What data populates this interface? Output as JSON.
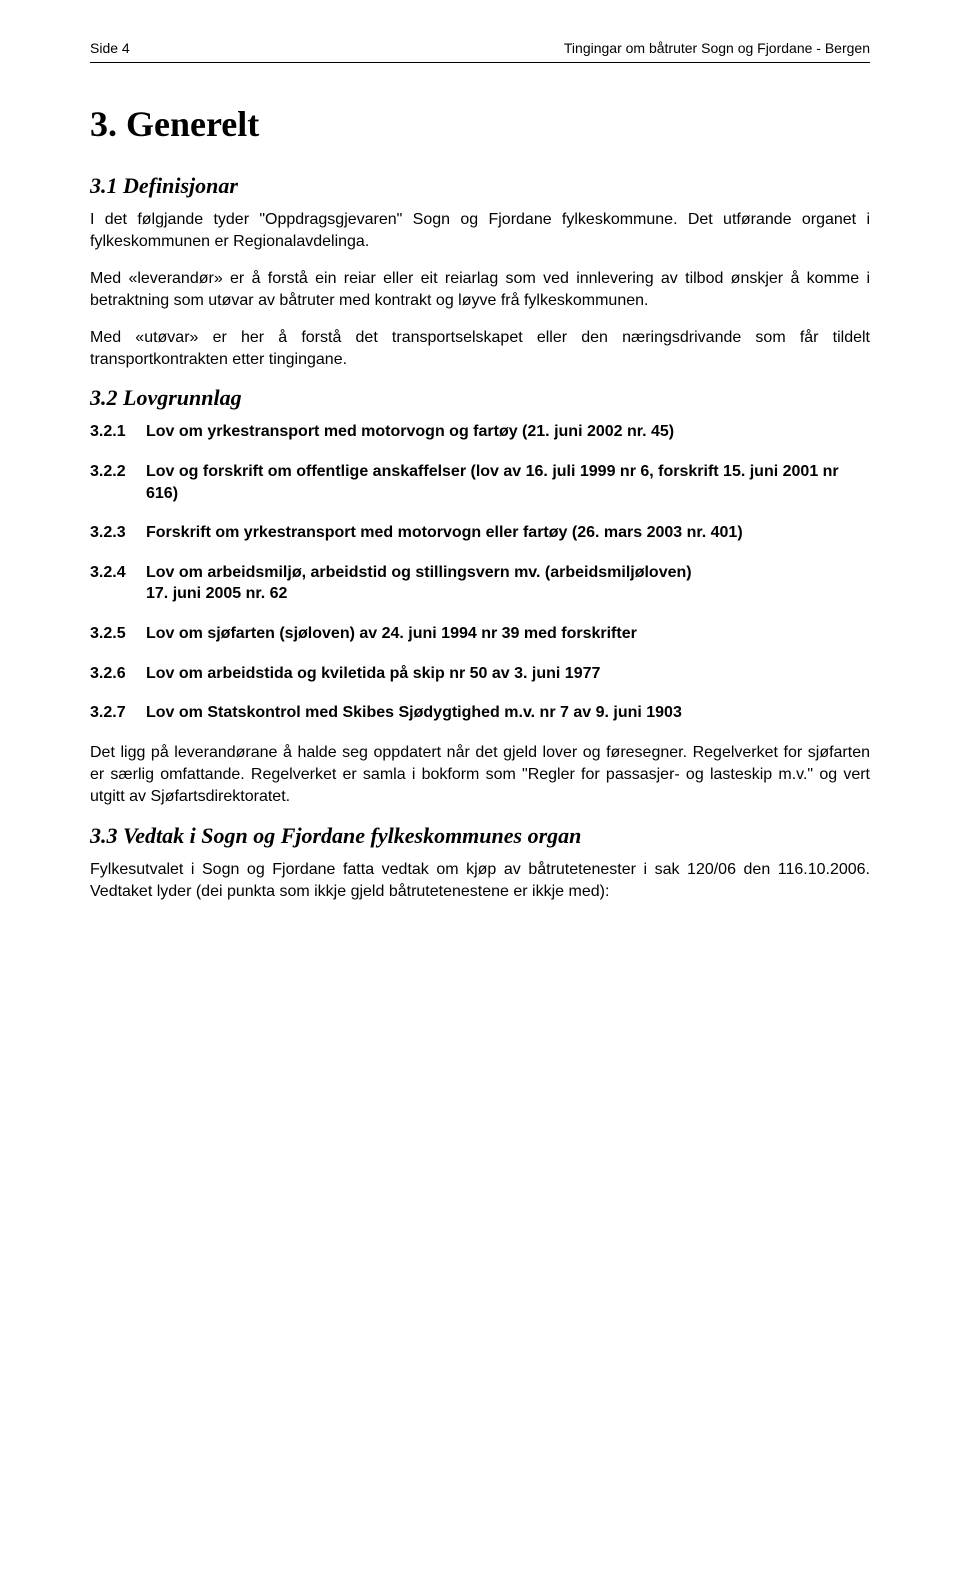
{
  "header": {
    "page_label": "Side 4",
    "doc_title": "Tingingar om båtruter Sogn og Fjordane - Bergen"
  },
  "section3": {
    "title": "3. Generelt",
    "s31": {
      "title": "3.1 Definisjonar",
      "p1": "I det følgjande tyder \"Oppdragsgjevaren\" Sogn og Fjordane fylkeskommune. Det utførande organet i fylkeskommunen er Regionalavdelinga.",
      "p2": "Med «leverandør» er å forstå ein reiar eller eit reiarlag som ved innlevering av tilbod ønskjer å komme i betraktning som utøvar av båtruter med kontrakt og løyve frå fylkeskommunen.",
      "p3": "Med «utøvar» er her å forstå det transportselskapet eller den næringsdrivande som får tildelt transportkontrakten etter tingingane."
    },
    "s32": {
      "title": "3.2 Lovgrunnlag",
      "items": [
        {
          "num": "3.2.1",
          "text": "Lov om yrkestransport med motorvogn og fartøy (21. juni 2002 nr. 45)"
        },
        {
          "num": "3.2.2",
          "text": "Lov og forskrift om offentlige anskaffelser (lov av 16. juli 1999 nr 6, forskrift 15. juni 2001 nr 616)"
        },
        {
          "num": "3.2.3",
          "text": "Forskrift om yrkestransport med motorvogn eller fartøy (26. mars 2003 nr. 401)"
        },
        {
          "num": "3.2.4",
          "text": "Lov om arbeidsmiljø, arbeidstid og stillingsvern mv. (arbeidsmiljøloven)\n17. juni 2005 nr. 62"
        },
        {
          "num": "3.2.5",
          "text": "Lov om sjøfarten (sjøloven) av 24. juni 1994 nr 39 med forskrifter"
        },
        {
          "num": "3.2.6",
          "text": "Lov om arbeidstida og kviletida på skip nr 50 av 3. juni 1977"
        },
        {
          "num": "3.2.7",
          "text": "Lov om Statskontrol med Skibes Sjødygtighed m.v. nr 7 av 9. juni 1903"
        }
      ],
      "closing": "Det ligg på leverandørane å halde seg oppdatert når det gjeld lover og føresegner. Regelverket for sjøfarten er særlig omfattande. Regelverket er samla i bokform som \"Regler for passasjer- og lasteskip m.v.\" og vert utgitt av Sjøfartsdirektoratet."
    },
    "s33": {
      "title": "3.3 Vedtak i Sogn og Fjordane fylkeskommunes organ",
      "p1": "Fylkesutvalet i Sogn og Fjordane fatta vedtak om kjøp av båtrutetenester i sak 120/06 den 116.10.2006. Vedtaket lyder (dei punkta som ikkje gjeld båtrutetenestene er ikkje med):"
    }
  }
}
